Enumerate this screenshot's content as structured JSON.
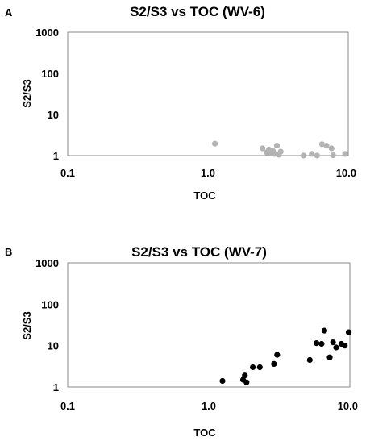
{
  "chart_data": [
    {
      "type": "scatter",
      "panel": "A",
      "title": "S2/S3 vs TOC (WV-6)",
      "xlabel": "TOC",
      "ylabel": "S2/S3",
      "x_scale": "log",
      "y_scale": "log",
      "xlim": [
        0.1,
        10.0
      ],
      "ylim": [
        1,
        1000
      ],
      "x_ticks": [
        "0.1",
        "1.0",
        "10.0"
      ],
      "y_ticks": [
        "1",
        "10",
        "100",
        "1000"
      ],
      "grid": false,
      "marker_color": "#b3b3b3",
      "points": [
        {
          "x": 1.12,
          "y": 1.95
        },
        {
          "x": 2.45,
          "y": 1.5
        },
        {
          "x": 2.62,
          "y": 1.2
        },
        {
          "x": 2.72,
          "y": 1.4
        },
        {
          "x": 2.8,
          "y": 1.15
        },
        {
          "x": 2.9,
          "y": 1.3
        },
        {
          "x": 3.0,
          "y": 1.1
        },
        {
          "x": 3.1,
          "y": 1.75
        },
        {
          "x": 3.2,
          "y": 1.05
        },
        {
          "x": 3.3,
          "y": 1.25
        },
        {
          "x": 4.8,
          "y": 1.0
        },
        {
          "x": 5.5,
          "y": 1.1
        },
        {
          "x": 6.0,
          "y": 1.0
        },
        {
          "x": 6.5,
          "y": 1.9
        },
        {
          "x": 7.0,
          "y": 1.75
        },
        {
          "x": 7.6,
          "y": 1.5
        },
        {
          "x": 7.8,
          "y": 1.02
        },
        {
          "x": 9.5,
          "y": 1.1
        }
      ]
    },
    {
      "type": "scatter",
      "panel": "B",
      "title": "S2/S3 vs TOC (WV-7)",
      "xlabel": "TOC",
      "ylabel": "S2/S3",
      "x_scale": "log",
      "y_scale": "log",
      "xlim": [
        0.1,
        10.0
      ],
      "ylim": [
        1,
        1000
      ],
      "x_ticks": [
        "0.1",
        "1.0",
        "10.0"
      ],
      "y_ticks": [
        "1",
        "10",
        "100",
        "1000"
      ],
      "grid": false,
      "marker_color": "#000000",
      "points": [
        {
          "x": 1.25,
          "y": 1.4
        },
        {
          "x": 1.75,
          "y": 1.5
        },
        {
          "x": 1.8,
          "y": 1.9
        },
        {
          "x": 1.85,
          "y": 1.3
        },
        {
          "x": 2.05,
          "y": 3.0
        },
        {
          "x": 2.3,
          "y": 3.0
        },
        {
          "x": 2.9,
          "y": 3.6
        },
        {
          "x": 3.05,
          "y": 6.0
        },
        {
          "x": 5.2,
          "y": 4.5
        },
        {
          "x": 5.8,
          "y": 11.5
        },
        {
          "x": 6.3,
          "y": 11.0
        },
        {
          "x": 6.6,
          "y": 23.0
        },
        {
          "x": 7.2,
          "y": 5.2
        },
        {
          "x": 7.6,
          "y": 12.0
        },
        {
          "x": 8.0,
          "y": 9.0
        },
        {
          "x": 8.7,
          "y": 11.0
        },
        {
          "x": 9.2,
          "y": 10.0
        },
        {
          "x": 9.8,
          "y": 21.0
        }
      ]
    }
  ]
}
